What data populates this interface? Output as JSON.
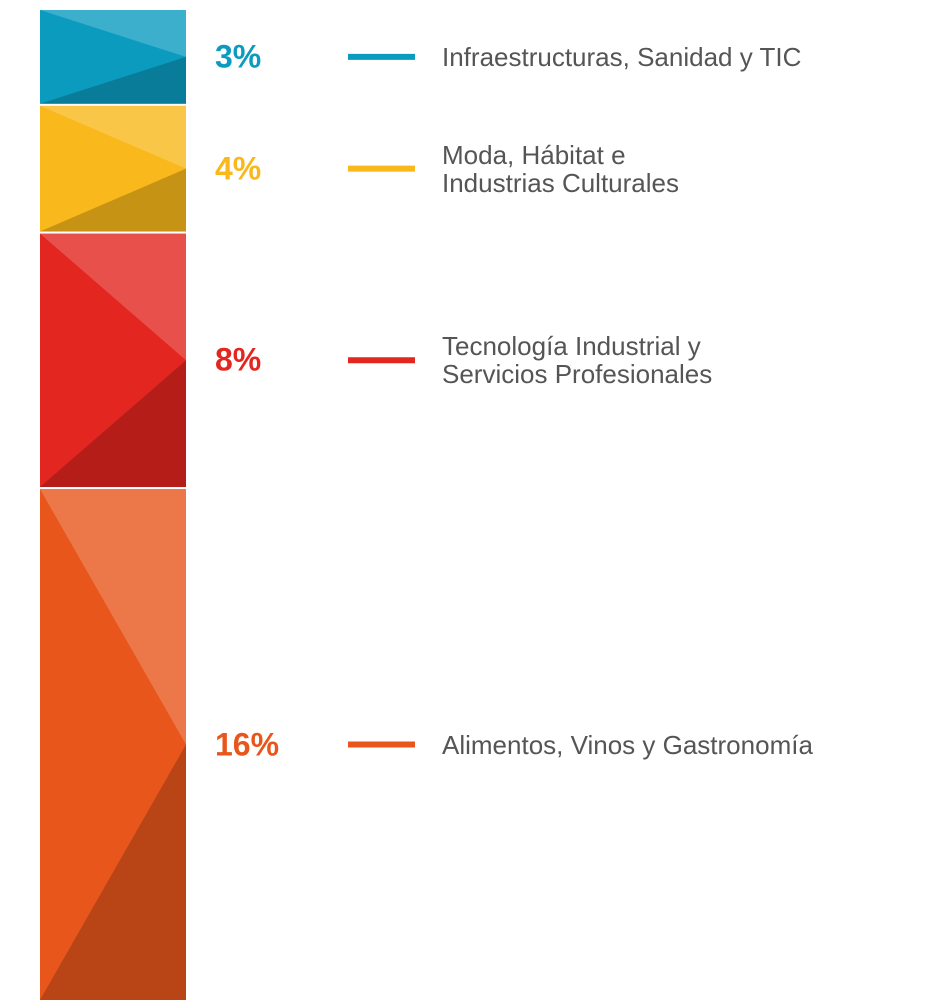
{
  "chart_data": {
    "type": "stacked_bar",
    "series": [
      {
        "name": "Infraestructuras, Sanidad y TIC",
        "color": "#0b9bbf",
        "values": [
          3
        ],
        "value_labels": [
          "3%"
        ]
      },
      {
        "name": "Moda, Hábitat e\nIndustrias Culturales",
        "color": "#f9b81b",
        "values": [
          4
        ],
        "value_labels": [
          "4%"
        ]
      },
      {
        "name": "Tecnología Industrial y\nServicios Profesionales",
        "color": "#e3261f",
        "values": [
          8
        ],
        "value_labels": [
          "8%"
        ]
      },
      {
        "name": "Alimentos, Vinos y Gastronomía",
        "color": "#e8561c",
        "values": [
          16
        ],
        "value_labels": [
          "16%"
        ]
      }
    ]
  }
}
